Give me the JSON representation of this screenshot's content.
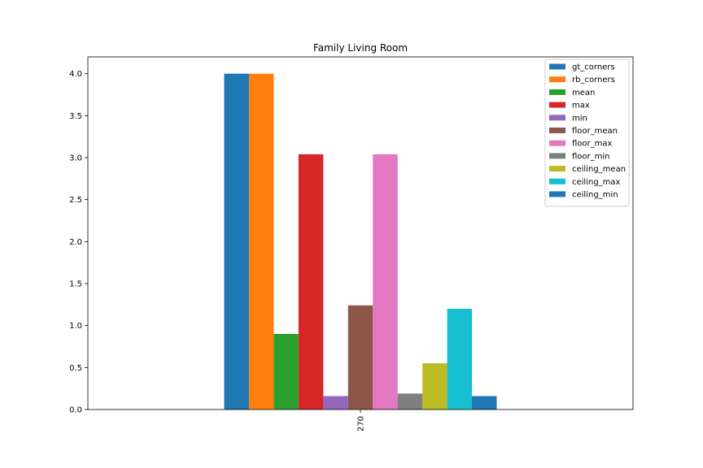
{
  "chart_data": {
    "type": "bar",
    "title": "Family Living Room",
    "xlabel": "",
    "ylabel": "",
    "categories": [
      "270"
    ],
    "ylim": [
      0,
      4.2
    ],
    "yticks": [
      "0.0",
      "0.5",
      "1.0",
      "1.5",
      "2.0",
      "2.5",
      "3.0",
      "3.5",
      "4.0"
    ],
    "grid": false,
    "legend_position": "top-right",
    "series": [
      {
        "name": "gt_corners",
        "values": [
          4.0
        ],
        "color": "#1f77b4"
      },
      {
        "name": "rb_corners",
        "values": [
          4.0
        ],
        "color": "#ff7f0e"
      },
      {
        "name": "mean",
        "values": [
          0.9
        ],
        "color": "#2ca02c"
      },
      {
        "name": "max",
        "values": [
          3.04
        ],
        "color": "#d62728"
      },
      {
        "name": "min",
        "values": [
          0.16
        ],
        "color": "#9467bd"
      },
      {
        "name": "floor_mean",
        "values": [
          1.24
        ],
        "color": "#8c564b"
      },
      {
        "name": "floor_max",
        "values": [
          3.04
        ],
        "color": "#e377c2"
      },
      {
        "name": "floor_min",
        "values": [
          0.19
        ],
        "color": "#7f7f7f"
      },
      {
        "name": "ceiling_mean",
        "values": [
          0.55
        ],
        "color": "#bcbd22"
      },
      {
        "name": "ceiling_max",
        "values": [
          1.2
        ],
        "color": "#17becf"
      },
      {
        "name": "ceiling_min",
        "values": [
          0.16
        ],
        "color": "#1f77b4"
      }
    ]
  }
}
